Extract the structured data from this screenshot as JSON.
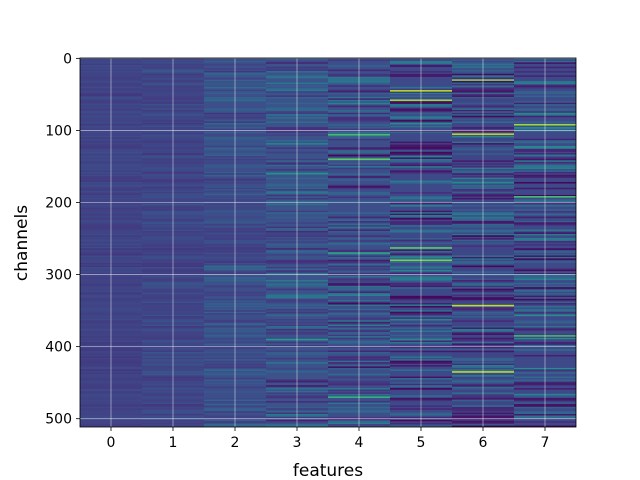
{
  "chart_data": {
    "type": "heatmap",
    "title": "",
    "xlabel": "features",
    "ylabel": "channels",
    "x_categories": [
      "0",
      "1",
      "2",
      "3",
      "4",
      "5",
      "6",
      "7"
    ],
    "y_ticks": [
      0,
      100,
      200,
      300,
      400,
      500
    ],
    "y_tick_labels": [
      "0",
      "100",
      "200",
      "300",
      "400",
      "500"
    ],
    "n_rows": 512,
    "ylim": [
      511.5,
      -0.5
    ],
    "grid": true,
    "colormap": "viridis",
    "column_stats": [
      {
        "feature": "0",
        "typical_value": 0.2,
        "spread": 0.03
      },
      {
        "feature": "1",
        "typical_value": 0.21,
        "spread": 0.04
      },
      {
        "feature": "2",
        "typical_value": 0.24,
        "spread": 0.07
      },
      {
        "feature": "3",
        "typical_value": 0.25,
        "spread": 0.12
      },
      {
        "feature": "4",
        "typical_value": 0.24,
        "spread": 0.16
      },
      {
        "feature": "5",
        "typical_value": 0.22,
        "spread": 0.22
      },
      {
        "feature": "6",
        "typical_value": 0.21,
        "spread": 0.18
      },
      {
        "feature": "7",
        "typical_value": 0.22,
        "spread": 0.2
      }
    ],
    "highlighted_cells": [
      {
        "feature": "5",
        "channel": 45,
        "value": 0.9
      },
      {
        "feature": "5",
        "channel": 58,
        "value": 0.85
      },
      {
        "feature": "5",
        "channel": 263,
        "value": 0.75
      },
      {
        "feature": "5",
        "channel": 280,
        "value": 0.8
      },
      {
        "feature": "6",
        "channel": 30,
        "value": 0.8
      },
      {
        "feature": "6",
        "channel": 105,
        "value": 0.9
      },
      {
        "feature": "6",
        "channel": 343,
        "value": 0.9
      },
      {
        "feature": "6",
        "channel": 435,
        "value": 0.9
      },
      {
        "feature": "7",
        "channel": 92,
        "value": 0.85
      },
      {
        "feature": "7",
        "channel": 192,
        "value": 0.7
      },
      {
        "feature": "7",
        "channel": 385,
        "value": 0.7
      },
      {
        "feature": "4",
        "channel": 106,
        "value": 0.7
      },
      {
        "feature": "4",
        "channel": 140,
        "value": 0.75
      },
      {
        "feature": "4",
        "channel": 270,
        "value": 0.6
      },
      {
        "feature": "4",
        "channel": 470,
        "value": 0.65
      },
      {
        "feature": "3",
        "channel": 160,
        "value": 0.5
      },
      {
        "feature": "3",
        "channel": 390,
        "value": 0.55
      }
    ]
  }
}
